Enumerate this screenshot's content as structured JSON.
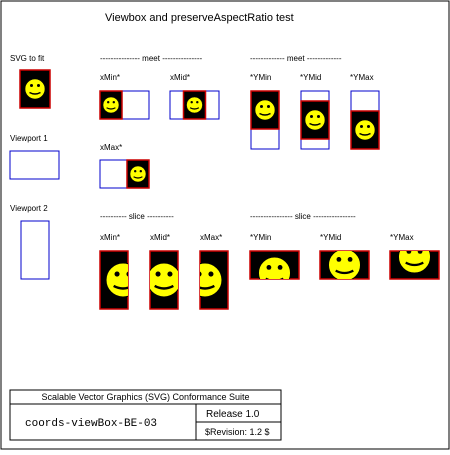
{
  "page": {
    "title": "Viewbox and preserveAspectRatio test"
  },
  "left_labels": {
    "svg_to_fit": "SVG to fit",
    "viewport_1": "Viewport 1",
    "viewport_2": "Viewport 2"
  },
  "sections": {
    "meet_left_heading": "--------------- meet ---------------",
    "meet_right_heading": "------------- meet -------------",
    "slice_left_heading": "---------- slice ----------",
    "slice_right_heading": "---------------- slice ----------------"
  },
  "meet_left": {
    "labels": [
      "xMin*",
      "xMid*",
      "xMax*"
    ]
  },
  "meet_right": {
    "labels": [
      "*YMin",
      "*YMid",
      "*YMax"
    ]
  },
  "slice_left": {
    "labels": [
      "xMin*",
      "xMid*",
      "xMax*"
    ]
  },
  "slice_right": {
    "labels": [
      "*YMin",
      "*YMid",
      "*YMax"
    ]
  },
  "footer": {
    "suite": "Scalable Vector Graphics (SVG) Conformance Suite",
    "test_id": "coords-viewBox-BE-03",
    "release": "Release 1.0",
    "revision": "$Revision: 1.2 $"
  },
  "colors": {
    "viewport_stroke": "#0000cc",
    "art_stroke": "#cc0000",
    "art_fill": "#000000",
    "face_fill": "#ffff00",
    "text": "#000000"
  },
  "icons": {
    "smiley": "smiley-face-icon"
  }
}
